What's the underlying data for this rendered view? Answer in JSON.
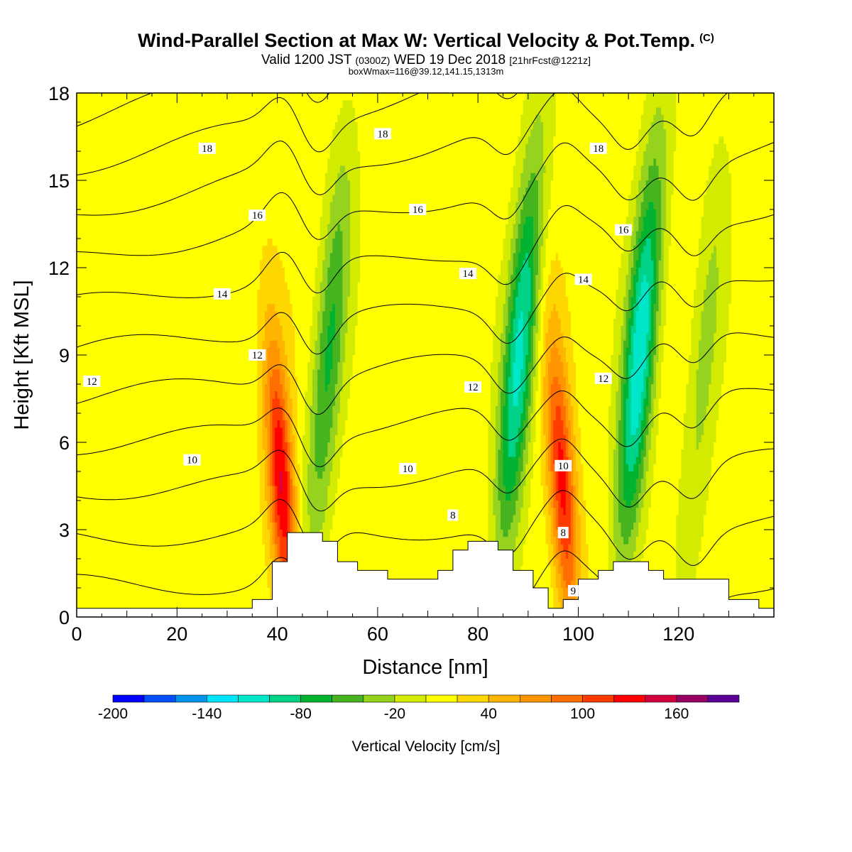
{
  "title": {
    "main": "Wind-Parallel Section at Max W: Vertical Velocity & Pot.Temp.",
    "copyright": "(C)",
    "valid_prefix": "Valid 1200 JST",
    "utc": "(0300Z)",
    "valid_date": "WED 19 Dec 2018",
    "forecast": "[21hrFcst@1221z]",
    "box_info": "boxWmax=116@39.12,141.15,1313m"
  },
  "chart_data": {
    "type": "heatmap",
    "xlabel": "Distance [nm]",
    "ylabel": "Height [Kft MSL]",
    "xlim": [
      0,
      139
    ],
    "ylim": [
      0,
      18
    ],
    "x_ticks": [
      "0",
      "20",
      "40",
      "60",
      "80",
      "100",
      "120"
    ],
    "y_ticks": [
      "0",
      "3",
      "6",
      "9",
      "12",
      "15",
      "18"
    ],
    "colorbar": {
      "label": "Vertical Velocity [cm/s]",
      "range": [
        -200,
        200
      ],
      "tick_labels": [
        "-200",
        "-140",
        "-80",
        "-20",
        "40",
        "100",
        "160"
      ],
      "colors": [
        "#0000ff",
        "#0050ff",
        "#0096f0",
        "#00e6ff",
        "#00e6c8",
        "#00d287",
        "#00b432",
        "#46b41e",
        "#96d21e",
        "#d2eb00",
        "#ffff00",
        "#ffd700",
        "#ffb400",
        "#ff9600",
        "#ff6e00",
        "#ff3c00",
        "#ff0000",
        "#d2003c",
        "#960064",
        "#5a0096"
      ]
    },
    "vertical_velocity_features": [
      {
        "x_center": 41,
        "w_cm_s": 130,
        "kind": "updraft"
      },
      {
        "x_center": 48,
        "w_cm_s": -75,
        "kind": "downdraft"
      },
      {
        "x_center": 86,
        "w_cm_s": -120,
        "kind": "downdraft"
      },
      {
        "x_center": 97,
        "w_cm_s": 116,
        "kind": "updraft"
      },
      {
        "x_center": 110,
        "w_cm_s": -130,
        "kind": "downdraft"
      },
      {
        "x_center": 123,
        "w_cm_s": -40,
        "kind": "downdraft"
      }
    ],
    "terrain": {
      "x": [
        0,
        35,
        35,
        39,
        39,
        42,
        42,
        46,
        46,
        49,
        49,
        52,
        52,
        56,
        56,
        62,
        62,
        72,
        72,
        75,
        75,
        78,
        78,
        84,
        84,
        87,
        87,
        91,
        91,
        94,
        94,
        97,
        97,
        100,
        100,
        104,
        104,
        107,
        107,
        114,
        114,
        117,
        117,
        130,
        130,
        136,
        136,
        139
      ],
      "y": [
        0.3,
        0.3,
        0.6,
        0.6,
        1.9,
        1.9,
        2.9,
        2.9,
        2.9,
        2.9,
        2.6,
        2.6,
        1.9,
        1.9,
        1.6,
        1.6,
        1.3,
        1.3,
        1.6,
        1.6,
        2.3,
        2.3,
        2.6,
        2.6,
        2.3,
        2.3,
        1.6,
        1.6,
        1.0,
        1.0,
        0.3,
        0.3,
        0.6,
        0.6,
        1.3,
        1.3,
        1.6,
        1.6,
        1.9,
        1.9,
        1.6,
        1.6,
        1.3,
        1.3,
        0.6,
        0.6,
        0.3,
        0.3
      ]
    },
    "contour_labels": [
      {
        "text": "18",
        "x": 26,
        "y": 16.1
      },
      {
        "text": "18",
        "x": 61,
        "y": 16.6
      },
      {
        "text": "18",
        "x": 104,
        "y": 16.1
      },
      {
        "text": "16",
        "x": 36,
        "y": 13.8
      },
      {
        "text": "16",
        "x": 68,
        "y": 14.0
      },
      {
        "text": "16",
        "x": 109,
        "y": 13.3
      },
      {
        "text": "14",
        "x": 29,
        "y": 11.1
      },
      {
        "text": "14",
        "x": 78,
        "y": 11.8
      },
      {
        "text": "14",
        "x": 101,
        "y": 11.6
      },
      {
        "text": "12",
        "x": 3,
        "y": 8.1
      },
      {
        "text": "12",
        "x": 36,
        "y": 9.0
      },
      {
        "text": "12",
        "x": 79,
        "y": 7.9
      },
      {
        "text": "12",
        "x": 105,
        "y": 8.2
      },
      {
        "text": "10",
        "x": 23,
        "y": 5.4
      },
      {
        "text": "10",
        "x": 66,
        "y": 5.1
      },
      {
        "text": "10",
        "x": 97,
        "y": 5.2
      },
      {
        "text": "8",
        "x": 75,
        "y": 3.5
      },
      {
        "text": "8",
        "x": 97,
        "y": 2.9
      },
      {
        "text": "9",
        "x": 99,
        "y": 0.9
      }
    ],
    "isentrope_levels": [
      8,
      9,
      10,
      11,
      12,
      13,
      14,
      15,
      16,
      17,
      18,
      19
    ]
  }
}
